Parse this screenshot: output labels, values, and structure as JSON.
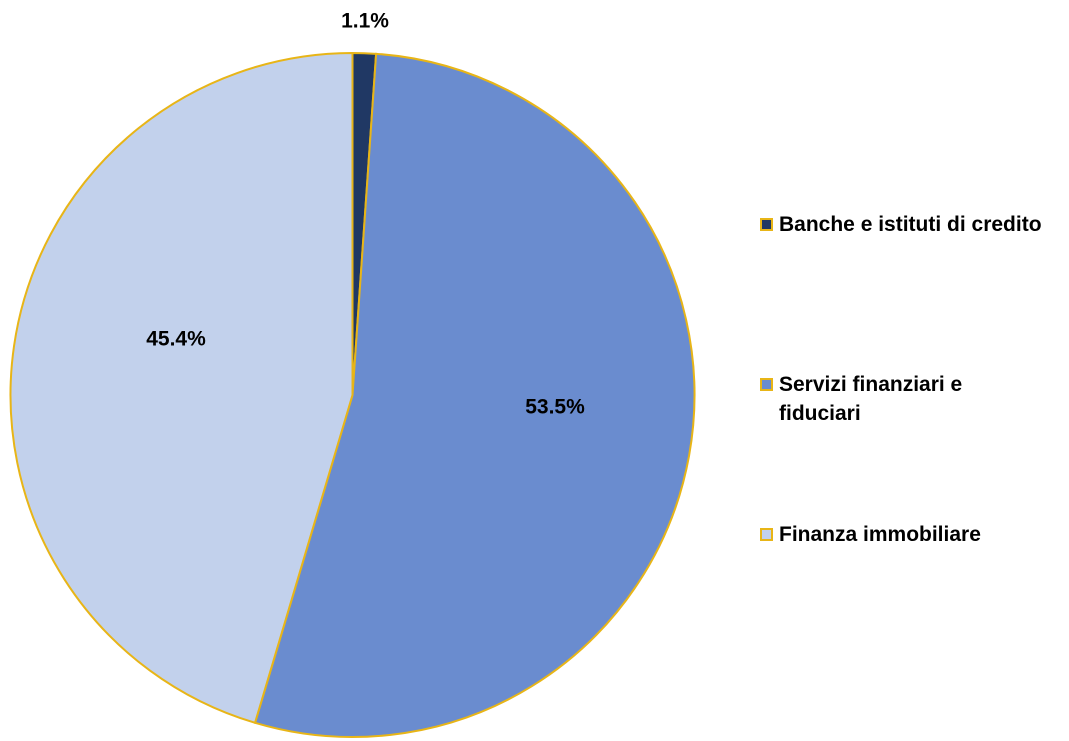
{
  "chart_data": {
    "type": "pie",
    "categories": [
      "Banche e istituti di credito",
      "Servizi finanziari e fiduciari",
      "Finanza immobiliare"
    ],
    "values": [
      1.1,
      53.5,
      45.4
    ],
    "value_labels": [
      "1.1%",
      "53.5%",
      "45.4%"
    ],
    "colors": [
      "#203864",
      "#6a8ccf",
      "#c2d1ec"
    ],
    "edge_color": "#e8b517",
    "legend": "right"
  }
}
